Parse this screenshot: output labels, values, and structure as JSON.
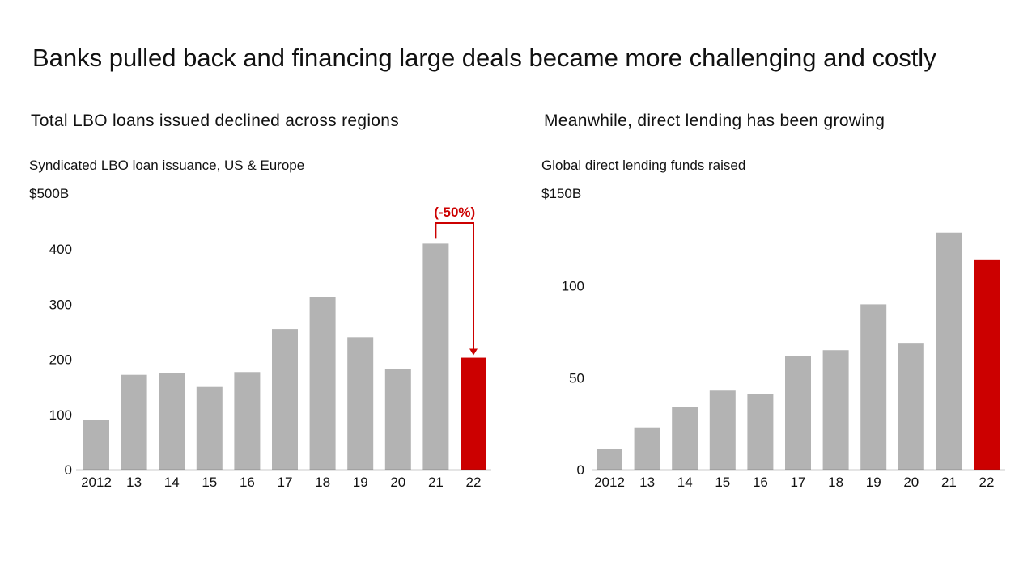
{
  "title": "Banks pulled back and financing large deals became more challenging and costly",
  "colors": {
    "bar": "#b3b3b3",
    "highlight": "#cc0000",
    "axis": "#333333"
  },
  "chart_data": [
    {
      "type": "bar",
      "panel_title": "Total LBO loans issued declined across regions",
      "title": "Syndicated LBO loan issuance, US & Europe",
      "unit_label": "$500B",
      "categories": [
        "2012",
        "13",
        "14",
        "15",
        "16",
        "17",
        "18",
        "19",
        "20",
        "21",
        "22"
      ],
      "values": [
        90,
        172,
        175,
        150,
        177,
        255,
        313,
        240,
        183,
        410,
        203
      ],
      "highlight_index": 10,
      "ylim": [
        0,
        500
      ],
      "yticks": [
        0,
        100,
        200,
        300,
        400
      ],
      "annotation": {
        "text": "(-50%)",
        "from_index": 9,
        "to_index": 10
      }
    },
    {
      "type": "bar",
      "panel_title": "Meanwhile, direct lending has been growing",
      "title": "Global direct lending funds raised",
      "unit_label": "$150B",
      "categories": [
        "2012",
        "13",
        "14",
        "15",
        "16",
        "17",
        "18",
        "19",
        "20",
        "21",
        "22"
      ],
      "values": [
        11,
        23,
        34,
        43,
        41,
        62,
        65,
        90,
        69,
        129,
        114
      ],
      "highlight_index": 10,
      "ylim": [
        0,
        150
      ],
      "yticks": [
        0,
        50,
        100
      ]
    }
  ]
}
